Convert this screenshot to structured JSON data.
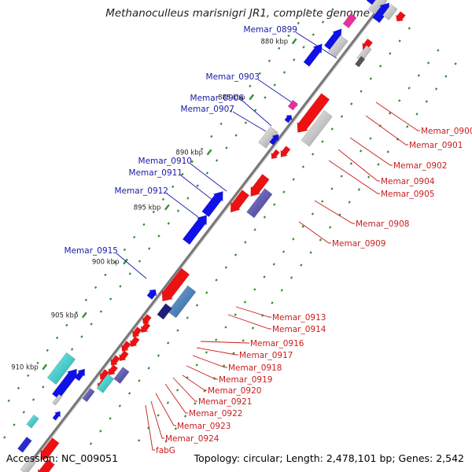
{
  "title": "Methanoculleus marisnigri JR1, complete genome",
  "footer": {
    "accession": "Accession: NC_009051",
    "stats": "Topology: circular; Length: 2,478,101 bp; Genes: 2,542"
  },
  "colors": {
    "forward_label": "#1a1aa6",
    "reverse_label": "#c81e1e",
    "forward_gene": "#1010e8",
    "reverse_gene": "#ee1111",
    "tick": "#2f8f2f",
    "backbone": "#777777"
  },
  "ticks": [
    "880 kbp",
    "885 kbp",
    "890 kbp",
    "895 kbp",
    "900 kbp",
    "905 kbp",
    "910 kbp"
  ],
  "forward_labels": [
    "Memar_0899",
    "Memar_0903",
    "Memar_0906",
    "Memar_0907",
    "Memar_0910",
    "Memar_0911",
    "Memar_0912",
    "Memar_0915"
  ],
  "reverse_labels": [
    "Memar_0900",
    "Memar_0901",
    "Memar_0902",
    "Memar_0904",
    "Memar_0905",
    "Memar_0908",
    "Memar_0909",
    "Memar_0913",
    "Memar_0914",
    "Memar_0916",
    "Memar_0917",
    "Memar_0918",
    "Memar_0919",
    "Memar_0920",
    "Memar_0921",
    "Memar_0922",
    "Memar_0923",
    "Memar_0924",
    "fabG"
  ]
}
